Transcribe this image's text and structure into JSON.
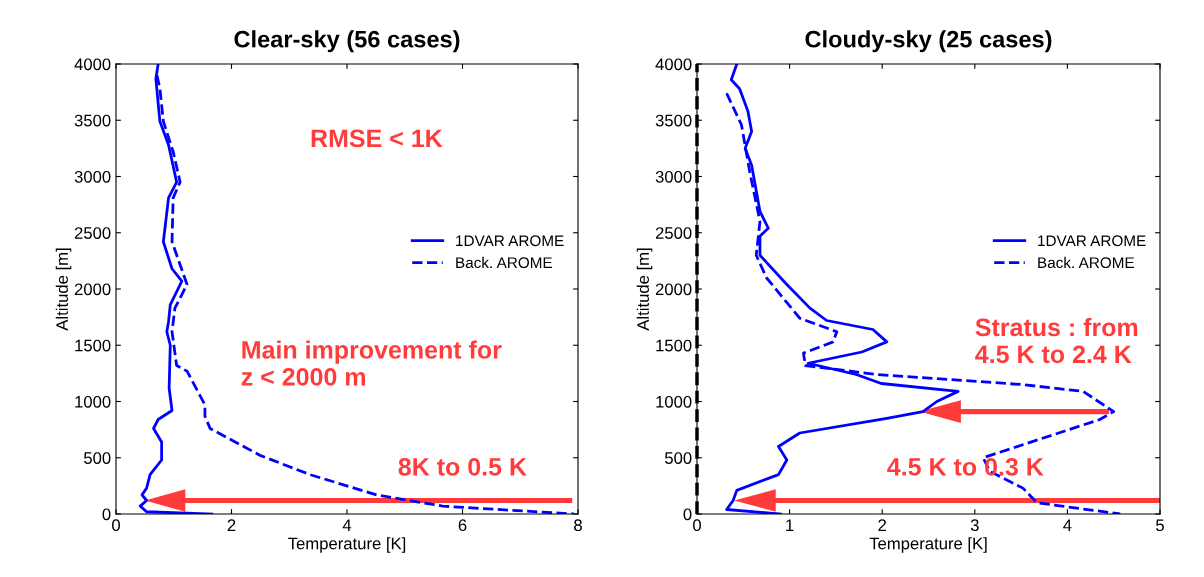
{
  "chart_data": [
    {
      "type": "line",
      "title": "Clear-sky (56 cases)",
      "xlabel": "Temperature [K]",
      "ylabel": "Altitude [m]",
      "xlim": [
        0,
        8
      ],
      "xticks": [
        0,
        2,
        4,
        6,
        8
      ],
      "ylim": [
        0,
        4000
      ],
      "yticks": [
        0,
        500,
        1000,
        1500,
        2000,
        2500,
        3000,
        3500,
        4000
      ],
      "grid": false,
      "legend": "center right",
      "marker": "none",
      "series": [
        {
          "name": "1DVAR AROME",
          "color": "#0000ff",
          "line_style": "solid",
          "x": [
            0.73,
            0.69,
            0.76,
            0.91,
            1.05,
            0.91,
            0.82,
            0.97,
            1.14,
            0.94,
            0.91,
            0.88,
            0.94,
            0.92,
            0.97,
            0.73,
            0.65,
            0.79,
            0.79,
            0.59,
            0.53,
            0.45,
            0.53,
            0.42,
            0.53,
            1.66
          ],
          "values": [
            4000,
            3870,
            3490,
            3280,
            2950,
            2810,
            2420,
            2180,
            2070,
            1860,
            1710,
            1620,
            1500,
            1120,
            920,
            840,
            760,
            640,
            480,
            350,
            230,
            170,
            120,
            70,
            20,
            0
          ]
        },
        {
          "name": "Back. AROME",
          "color": "#0000ff",
          "line_style": "dashed",
          "x": [
            0.71,
            0.76,
            0.82,
            0.99,
            1.11,
            0.99,
            0.97,
            1.23,
            1.02,
            0.97,
            1.05,
            1.23,
            1.54,
            1.54,
            1.63,
            2.5,
            3.36,
            4.51,
            5.66,
            7.93
          ],
          "values": [
            3900,
            3780,
            3490,
            3220,
            2950,
            2810,
            2420,
            2040,
            1830,
            1620,
            1320,
            1270,
            970,
            870,
            760,
            520,
            350,
            170,
            70,
            0
          ]
        }
      ],
      "annotations": [
        "RMSE < 1K",
        "Main improvement for\nz < 2000 m",
        "8K to 0.5 K"
      ]
    },
    {
      "type": "line",
      "title": "Cloudy-sky (25 cases)",
      "xlabel": "Temperature [K]",
      "ylabel": "Altitude [m]",
      "xlim": [
        0,
        5
      ],
      "xticks": [
        0,
        1,
        2,
        3,
        4,
        5
      ],
      "ylim": [
        0,
        4000
      ],
      "yticks": [
        0,
        500,
        1000,
        1500,
        2000,
        2500,
        3000,
        3500,
        4000
      ],
      "grid": false,
      "legend": "center right",
      "marker": "none",
      "ref_lines": [
        {
          "axis": "x",
          "value": 0,
          "color": "#000000",
          "line_style": "dashed"
        }
      ],
      "series": [
        {
          "name": "1DVAR AROME",
          "color": "#0000ff",
          "line_style": "solid",
          "x": [
            0.43,
            0.37,
            0.46,
            0.55,
            0.59,
            0.52,
            0.59,
            0.68,
            0.77,
            0.68,
            0.68,
            0.97,
            1.22,
            1.4,
            1.9,
            2.05,
            1.78,
            1.2,
            1.72,
            1.99,
            2.82,
            2.59,
            2.44,
            2.05,
            1.11,
            0.88,
            0.97,
            0.88,
            0.43,
            0.39,
            0.32,
            0.9
          ],
          "values": [
            4000,
            3860,
            3780,
            3580,
            3400,
            3250,
            3100,
            2690,
            2540,
            2470,
            2300,
            2040,
            1830,
            1720,
            1640,
            1530,
            1440,
            1340,
            1240,
            1160,
            1090,
            1000,
            910,
            850,
            720,
            600,
            480,
            350,
            210,
            120,
            40,
            0
          ]
        },
        {
          "name": "Back. AROME",
          "color": "#0000ff",
          "line_style": "dashed",
          "x": [
            0.32,
            0.48,
            0.57,
            0.68,
            0.64,
            0.75,
            1.11,
            1.51,
            1.47,
            1.15,
            1.17,
            1.94,
            3.52,
            4.17,
            4.5,
            4.35,
            3.09,
            3.16,
            3.52,
            3.67,
            4.57
          ],
          "values": [
            3740,
            3460,
            3040,
            2600,
            2300,
            2100,
            1740,
            1620,
            1530,
            1430,
            1320,
            1240,
            1150,
            1090,
            910,
            840,
            500,
            380,
            230,
            100,
            0
          ]
        }
      ],
      "annotations": [
        "Stratus : from\n4.5 K to 2.4 K",
        "4.5 K to 0.3 K"
      ]
    }
  ]
}
